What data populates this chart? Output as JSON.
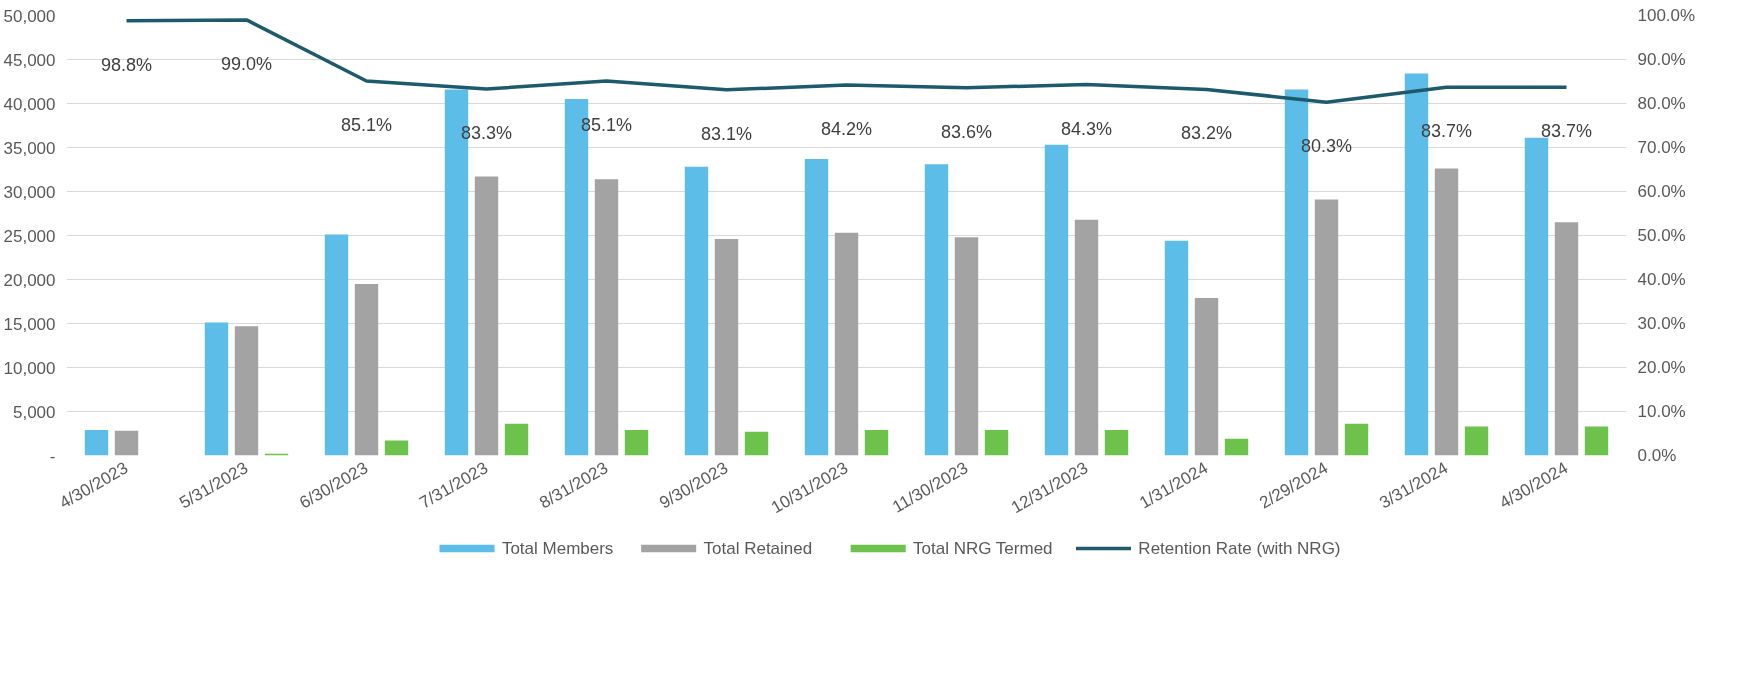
{
  "chart_data": {
    "type": "bar",
    "categories": [
      "4/30/2023",
      "5/31/2023",
      "6/30/2023",
      "7/31/2023",
      "8/31/2023",
      "9/30/2023",
      "10/31/2023",
      "11/30/2023",
      "12/31/2023",
      "1/31/2024",
      "2/29/2024",
      "3/31/2024",
      "4/30/2024"
    ],
    "series": [
      {
        "name": "Total Members",
        "color": "#5bbde8",
        "values": [
          2900,
          15100,
          25100,
          41600,
          40500,
          32800,
          33700,
          33100,
          35300,
          24400,
          41600,
          43400,
          36100
        ]
      },
      {
        "name": "Total Retained",
        "color": "#a3a3a3",
        "values": [
          2800,
          14700,
          19500,
          31700,
          31400,
          24600,
          25300,
          24800,
          26800,
          17900,
          29100,
          32600,
          26500
        ]
      },
      {
        "name": "Total NRG Termed",
        "color": "#6cc24a",
        "values": [
          0,
          200,
          1700,
          3600,
          2900,
          2700,
          2900,
          2900,
          2900,
          1900,
          3600,
          3300,
          3300
        ]
      },
      {
        "name": "Retention Rate (with NRG)",
        "type": "line",
        "axis": "y2",
        "color": "#1d5a6c",
        "values": [
          98.8,
          99.0,
          85.1,
          83.3,
          85.1,
          83.1,
          84.2,
          83.6,
          84.3,
          83.2,
          80.3,
          83.7,
          83.7
        ],
        "value_labels": [
          "98.8%",
          "99.0%",
          "85.1%",
          "83.3%",
          "85.1%",
          "83.1%",
          "84.2%",
          "83.6%",
          "84.3%",
          "83.2%",
          "80.3%",
          "83.7%",
          "83.7%"
        ]
      }
    ],
    "ylim": [
      0,
      50000
    ],
    "yticks": [
      {
        "value": 0,
        "label": "-"
      },
      {
        "value": 5000,
        "label": "5,000"
      },
      {
        "value": 10000,
        "label": "10,000"
      },
      {
        "value": 15000,
        "label": "15,000"
      },
      {
        "value": 20000,
        "label": "20,000"
      },
      {
        "value": 25000,
        "label": "25,000"
      },
      {
        "value": 30000,
        "label": "30,000"
      },
      {
        "value": 35000,
        "label": "35,000"
      },
      {
        "value": 40000,
        "label": "40,000"
      },
      {
        "value": 45000,
        "label": "45,000"
      },
      {
        "value": 50000,
        "label": "50,000"
      }
    ],
    "y2lim": [
      0,
      100
    ],
    "y2ticks": [
      {
        "value": 0,
        "label": "0.0%"
      },
      {
        "value": 10,
        "label": "10.0%"
      },
      {
        "value": 20,
        "label": "20.0%"
      },
      {
        "value": 30,
        "label": "30.0%"
      },
      {
        "value": 40,
        "label": "40.0%"
      },
      {
        "value": 50,
        "label": "50.0%"
      },
      {
        "value": 60,
        "label": "60.0%"
      },
      {
        "value": 70,
        "label": "70.0%"
      },
      {
        "value": 80,
        "label": "80.0%"
      },
      {
        "value": 90,
        "label": "90.0%"
      },
      {
        "value": 100,
        "label": "100.0%"
      }
    ],
    "grid": "y",
    "legend": "bottom"
  }
}
